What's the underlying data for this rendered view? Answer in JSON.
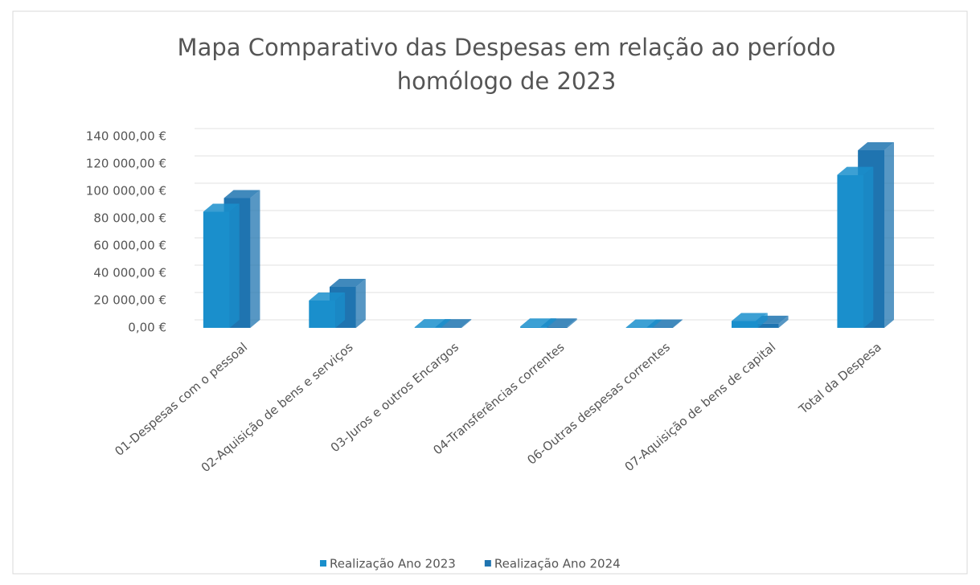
{
  "chart_data": {
    "type": "bar",
    "title": "Mapa Comparativo das Despesas em relação ao período homólogo de 2023",
    "categories": [
      "01-Despesas com o pessoal",
      "02-Aquisição de bens e serviços",
      "03-Juros e outros Encargos",
      "04-Transferências correntes",
      "06-Outras despesas correntes",
      "07-Aquisição de bens de capital",
      "Total da Despesa"
    ],
    "series": [
      {
        "name": "Realização Ano 2023",
        "color": "#1a8fcc",
        "values": [
          85000,
          20000,
          500,
          1000,
          300,
          5000,
          112000
        ]
      },
      {
        "name": "Realização Ano 2024",
        "color": "#1f74b0",
        "values": [
          95000,
          30000,
          500,
          1000,
          300,
          3000,
          130000
        ]
      }
    ],
    "ylim": [
      0,
      140000
    ],
    "yticks": [
      {
        "value": 0,
        "label": "0,00 €"
      },
      {
        "value": 20000,
        "label": "20 000,00 €"
      },
      {
        "value": 40000,
        "label": "40 000,00 €"
      },
      {
        "value": 60000,
        "label": "60 000,00 €"
      },
      {
        "value": 80000,
        "label": "80 000,00 €"
      },
      {
        "value": 100000,
        "label": "100 000,00 €"
      },
      {
        "value": 120000,
        "label": "120 000,00 €"
      },
      {
        "value": 140000,
        "label": "140 000,00 €"
      }
    ],
    "grid": true,
    "legend": "bottom"
  }
}
